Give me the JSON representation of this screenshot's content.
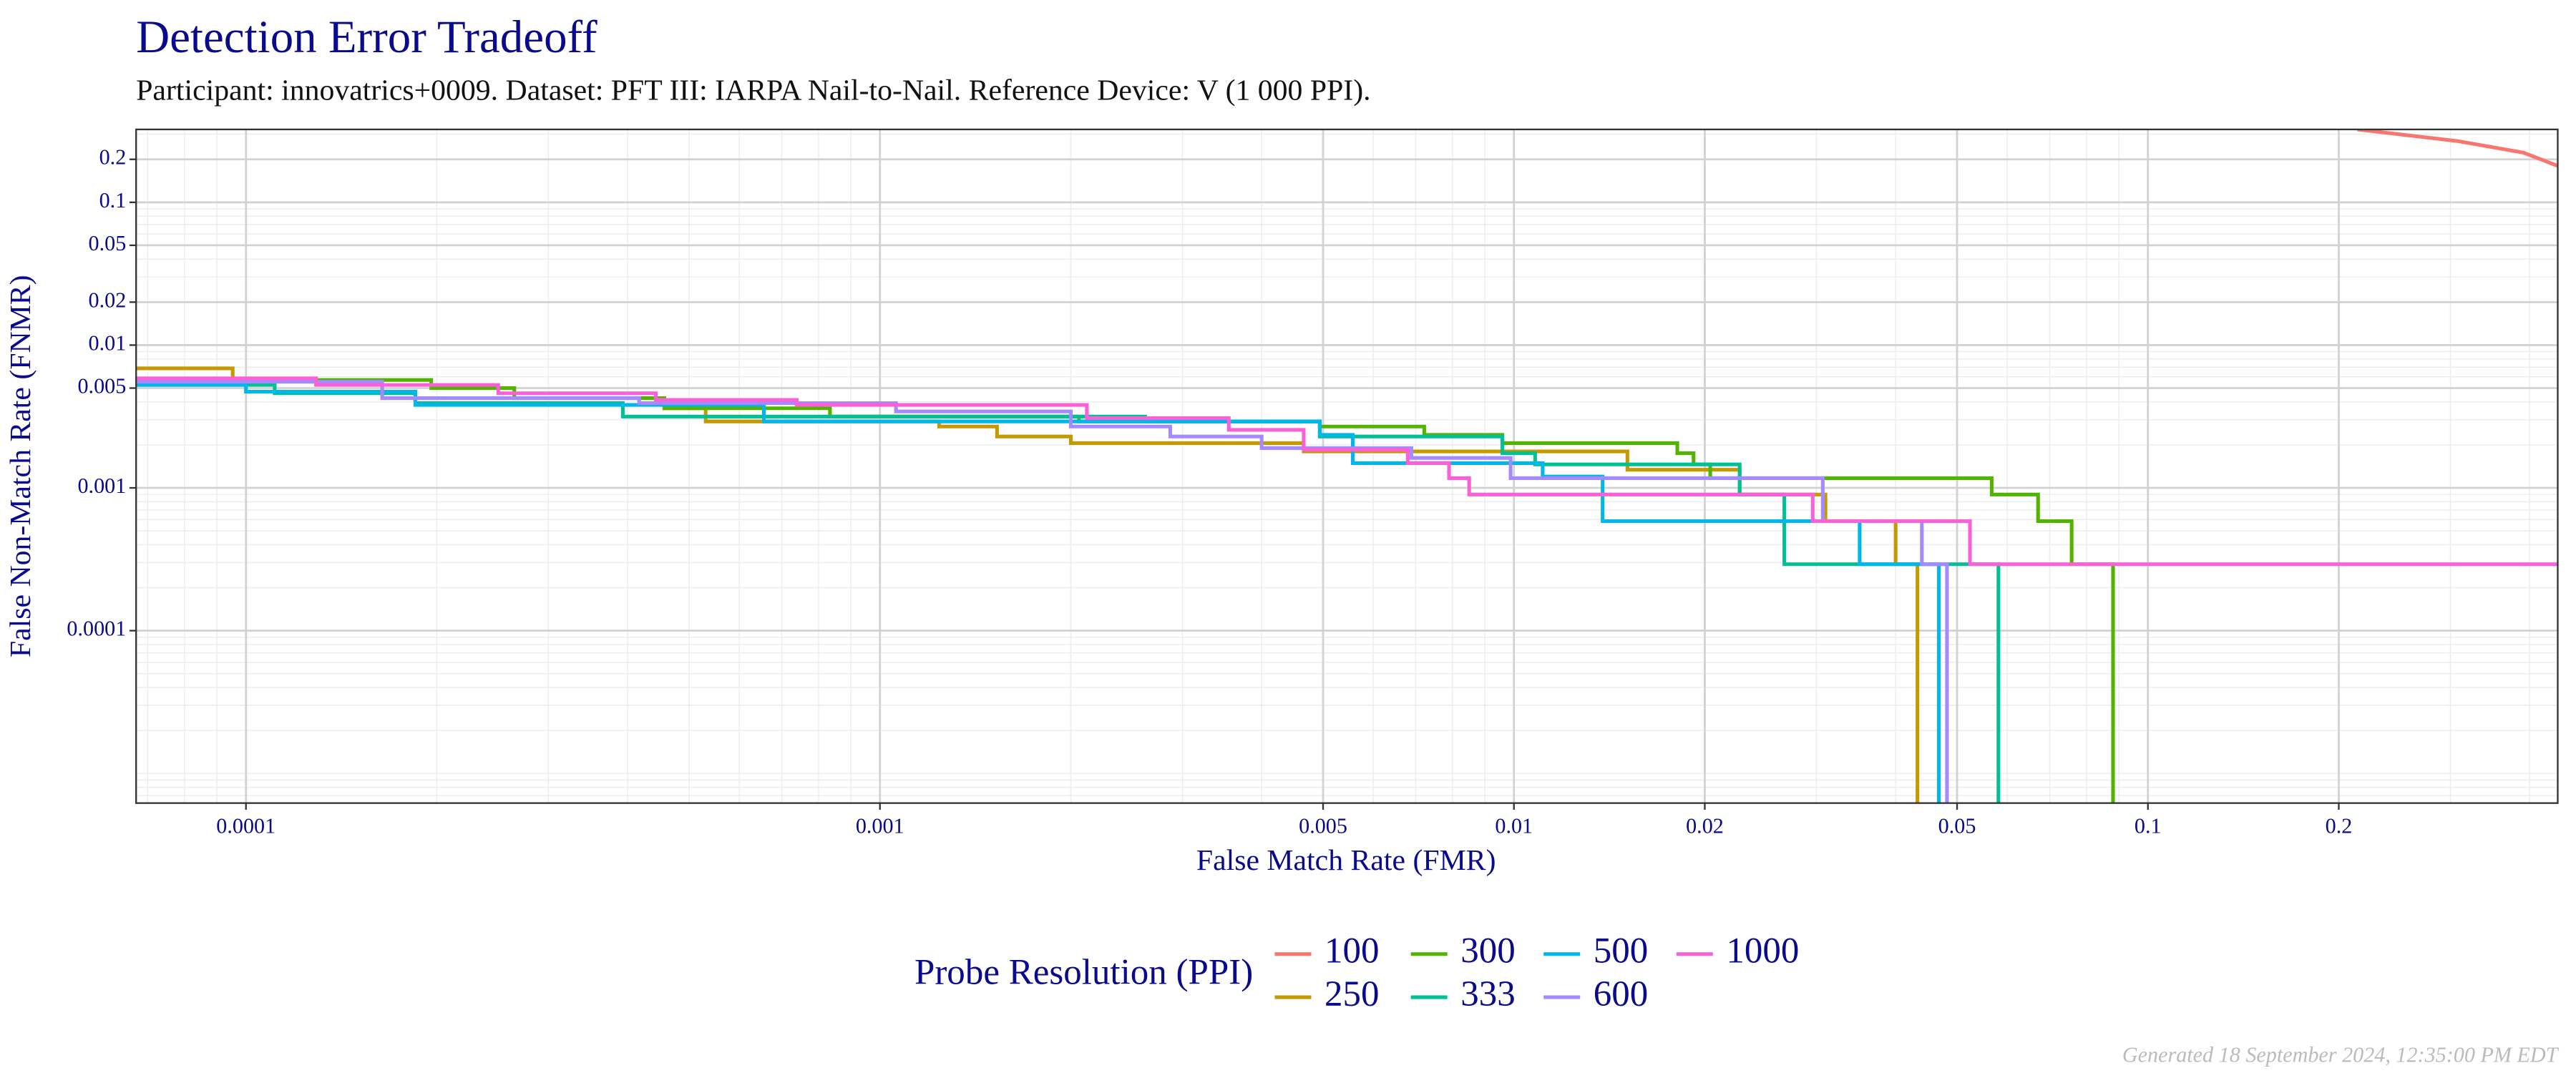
{
  "chart_data": {
    "type": "line",
    "title": "Detection Error Tradeoff",
    "subtitle": "Participant: innovatrics+0009. Dataset: PFT III: IARPA Nail-to-Nail. Reference Device: V (1 000 PPI).",
    "x_label": "False Match Rate (FMR)",
    "y_label": "False Non-Match Rate (FNMR)",
    "x_log": true,
    "y_log": true,
    "grid": true,
    "xlim": [
      6.71e-05,
      0.443
    ],
    "ylim": [
      6.2e-06,
      0.324
    ],
    "xticks": [
      0.0001,
      0.001,
      0.005,
      0.01,
      0.02,
      0.05,
      0.1,
      0.2
    ],
    "yticks": [
      0.0001,
      0.001,
      0.005,
      0.01,
      0.02,
      0.05,
      0.1,
      0.2
    ],
    "legend_title": "Probe Resolution (PPI)",
    "legend_position": "bottom",
    "footer": "Generated 18 September 2024, 12:35:00 PM EDT",
    "series": [
      {
        "name": "100",
        "color": "#F8766D",
        "x": [
          0.214,
          0.307,
          0.391,
          0.443
        ],
        "values": [
          0.324,
          0.269,
          0.223,
          0.18
        ]
      },
      {
        "name": "250",
        "color": "#C49A00",
        "x": [
          6.71e-05,
          9.53e-05,
          9.53e-05,
          0.000164,
          0.000164,
          0.000457,
          0.000457,
          0.000531,
          0.000531,
          0.00124,
          0.00124,
          0.00153,
          0.00153,
          0.002,
          0.002,
          0.00466,
          0.00466,
          0.0151,
          0.0151,
          0.0227,
          0.0227,
          0.031,
          0.031,
          0.04,
          0.04,
          0.0433,
          0.0433
        ],
        "values": [
          0.00687,
          0.00687,
          0.00554,
          0.00554,
          0.00425,
          0.00425,
          0.00361,
          0.00361,
          0.00292,
          0.00292,
          0.00269,
          0.00269,
          0.00229,
          0.00229,
          0.00206,
          0.00206,
          0.0018,
          0.0018,
          0.00134,
          0.00134,
          0.000898,
          0.000898,
          0.000585,
          0.000585,
          0.000292,
          0.000292,
          6.2e-06
        ]
      },
      {
        "name": "300",
        "color": "#53B400",
        "x": [
          6.71e-05,
          0.000196,
          0.000196,
          0.000265,
          0.000265,
          0.000457,
          0.000457,
          0.000834,
          0.000834,
          0.00206,
          0.00206,
          0.00494,
          0.00494,
          0.00722,
          0.00722,
          0.00959,
          0.00959,
          0.0181,
          0.0181,
          0.0192,
          0.0192,
          0.0204,
          0.0204,
          0.0567,
          0.0567,
          0.0671,
          0.0671,
          0.0758,
          0.0758,
          0.0881,
          0.0881
        ],
        "values": [
          0.0057,
          0.0057,
          0.005,
          0.005,
          0.00425,
          0.00425,
          0.00361,
          0.00361,
          0.00316,
          0.00316,
          0.00292,
          0.00292,
          0.00269,
          0.00269,
          0.00235,
          0.00235,
          0.00206,
          0.00206,
          0.00175,
          0.00175,
          0.00146,
          0.00146,
          0.00117,
          0.00117,
          0.000898,
          0.000898,
          0.000585,
          0.000585,
          0.000292,
          0.000292,
          6.2e-06
        ]
      },
      {
        "name": "333",
        "color": "#00C094",
        "x": [
          6.71e-05,
          0.000111,
          0.000111,
          0.000185,
          0.000185,
          0.000393,
          0.000393,
          0.00262,
          0.00262,
          0.00494,
          0.00494,
          0.00959,
          0.00959,
          0.0108,
          0.0108,
          0.0227,
          0.0227,
          0.0267,
          0.0267,
          0.0581,
          0.0581
        ],
        "values": [
          0.00526,
          0.00526,
          0.0046,
          0.0046,
          0.00392,
          0.00392,
          0.00316,
          0.00316,
          0.00292,
          0.00292,
          0.00229,
          0.00229,
          0.00175,
          0.00175,
          0.00146,
          0.00146,
          0.000898,
          0.000898,
          0.000292,
          0.000292,
          6.2e-06
        ]
      },
      {
        "name": "500",
        "color": "#00B6EB",
        "x": [
          6.71e-05,
          0.0001,
          0.0001,
          0.000185,
          0.000185,
          0.000656,
          0.000656,
          0.00494,
          0.00494,
          0.00557,
          0.00557,
          0.0111,
          0.0111,
          0.0138,
          0.0138,
          0.0351,
          0.0351,
          0.0468,
          0.0468
        ],
        "values": [
          0.00526,
          0.00526,
          0.00472,
          0.00472,
          0.00381,
          0.00381,
          0.00292,
          0.00292,
          0.00235,
          0.00235,
          0.00149,
          0.00149,
          0.0012,
          0.0012,
          0.000585,
          0.000585,
          0.000292,
          0.000292,
          6.2e-06
        ]
      },
      {
        "name": "600",
        "color": "#A58AFF",
        "x": [
          6.71e-05,
          0.000164,
          0.000164,
          0.000417,
          0.000417,
          0.00106,
          0.00106,
          0.002,
          0.002,
          0.00287,
          0.00287,
          0.004,
          0.004,
          0.00689,
          0.00689,
          0.00988,
          0.00988,
          0.0307,
          0.0307,
          0.044,
          0.044,
          0.0482,
          0.0482
        ],
        "values": [
          0.00554,
          0.00554,
          0.00425,
          0.00425,
          0.00392,
          0.00392,
          0.00343,
          0.00343,
          0.00269,
          0.00269,
          0.00229,
          0.00229,
          0.0019,
          0.0019,
          0.00162,
          0.00162,
          0.00117,
          0.00117,
          0.000585,
          0.000585,
          0.000292,
          0.000292,
          6.2e-06
        ]
      },
      {
        "name": "1000",
        "color": "#FB61D7",
        "x": [
          6.71e-05,
          0.000129,
          0.000129,
          0.00025,
          0.00025,
          0.000443,
          0.000443,
          0.000739,
          0.000739,
          0.00212,
          0.00212,
          0.00355,
          0.00355,
          0.00466,
          0.00466,
          0.0068,
          0.0068,
          0.0079,
          0.0079,
          0.0085,
          0.0085,
          0.0296,
          0.0296,
          0.0524,
          0.0524,
          0.443
        ],
        "values": [
          0.00585,
          0.00585,
          0.00526,
          0.00526,
          0.0046,
          0.0046,
          0.00413,
          0.00413,
          0.00381,
          0.00381,
          0.00308,
          0.00308,
          0.00255,
          0.00255,
          0.00185,
          0.00185,
          0.00149,
          0.00149,
          0.00117,
          0.00117,
          0.000898,
          0.000898,
          0.000585,
          0.000585,
          0.000292,
          0.000292
        ]
      }
    ]
  }
}
